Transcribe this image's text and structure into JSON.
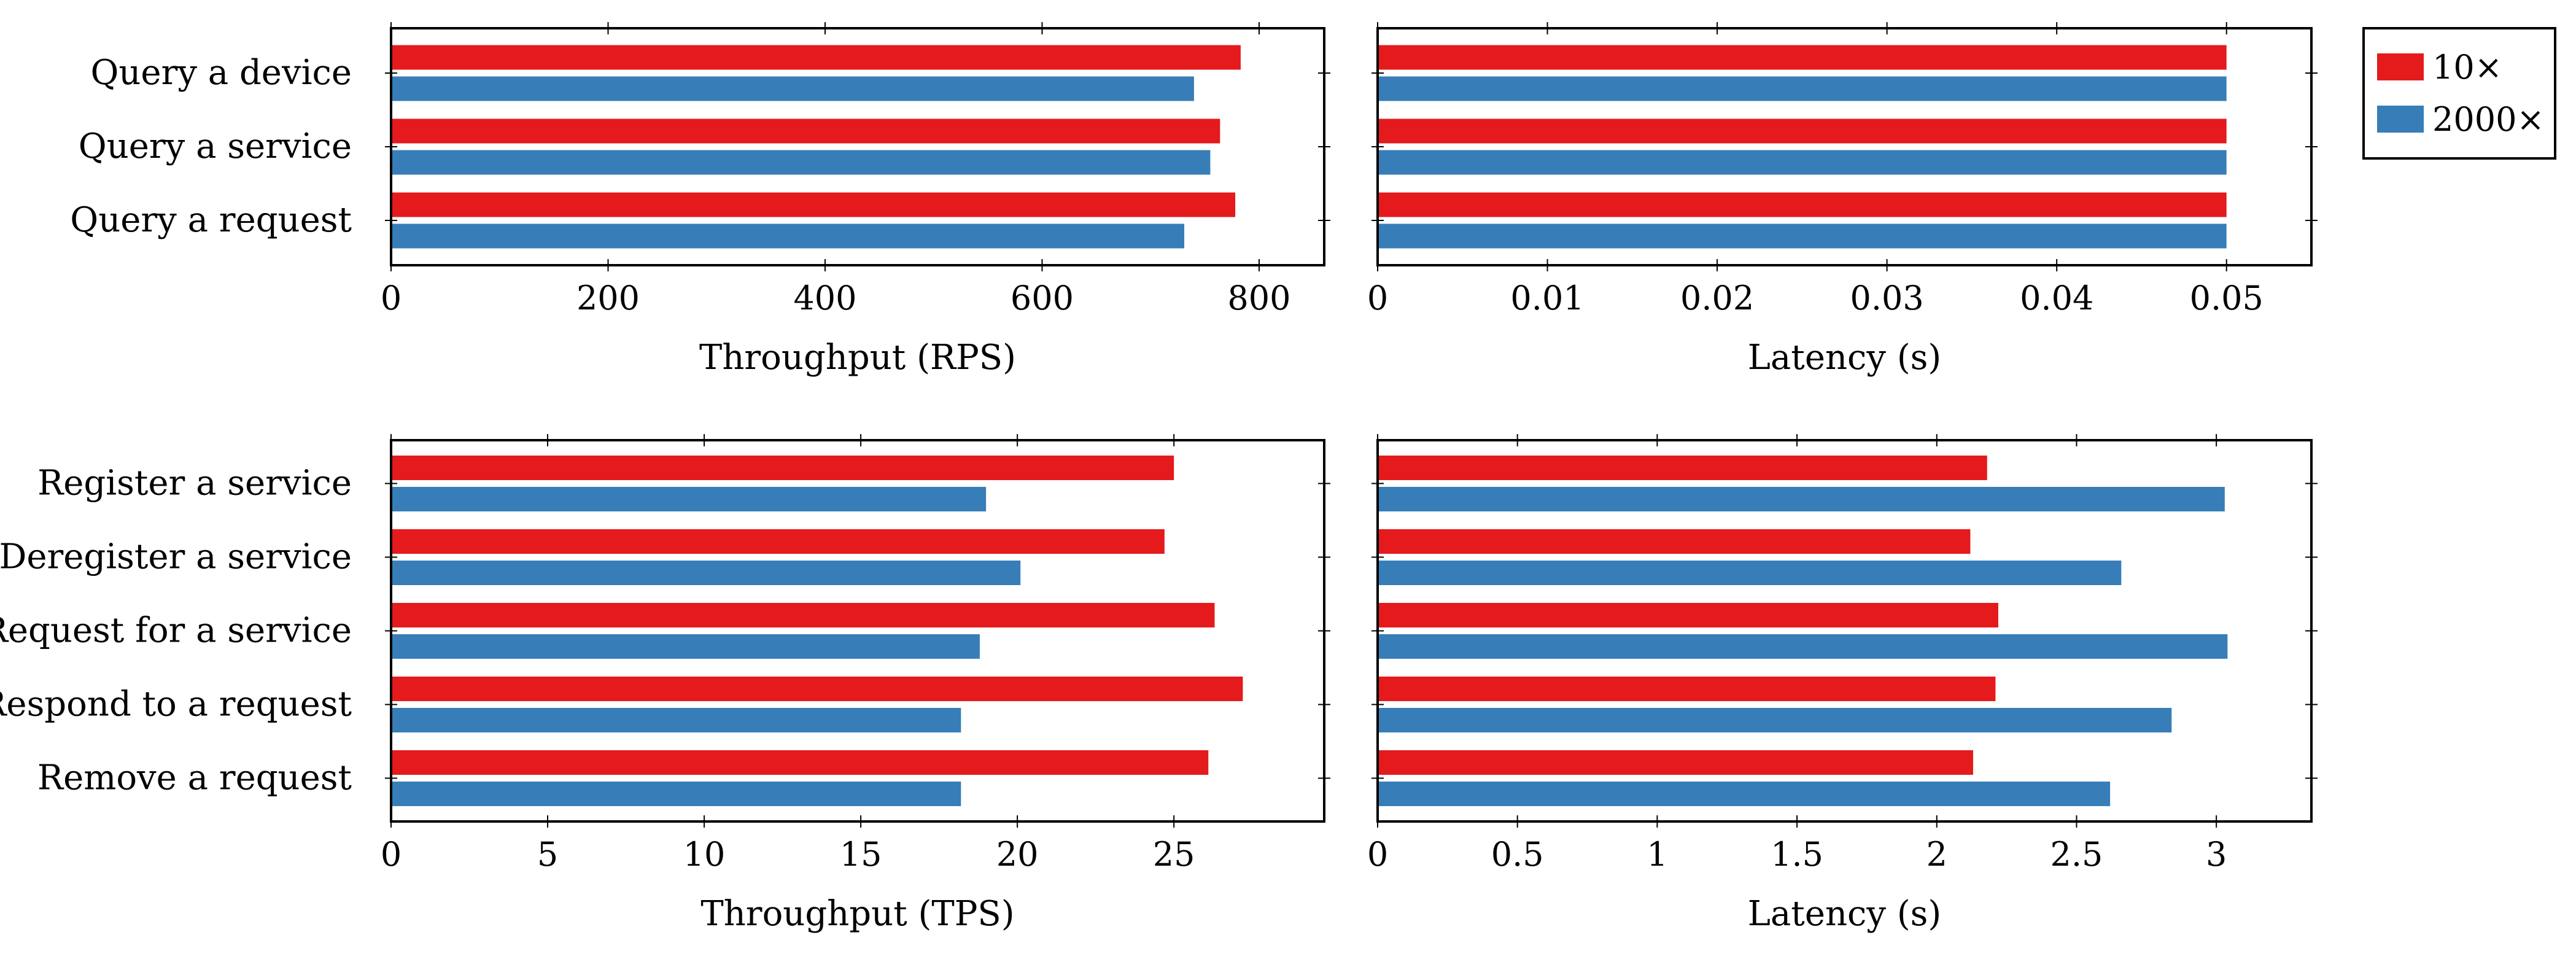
{
  "series_styles": [
    {
      "name": "10×",
      "color": "#e41a1c"
    },
    {
      "name": "2000×",
      "color": "#377eb8"
    }
  ],
  "chart_data": [
    {
      "type": "bar",
      "orientation": "horizontal",
      "categories": [
        "Query a device",
        "Query a service",
        "Query a request"
      ],
      "series": [
        {
          "name": "10×",
          "values": [
            783,
            764,
            778
          ]
        },
        {
          "name": "2000×",
          "values": [
            740,
            755,
            731
          ]
        }
      ],
      "xlabel": "Throughput (RPS)",
      "xlim": [
        0,
        860
      ],
      "xticks": [
        0,
        200,
        400,
        600,
        800
      ],
      "xtick_labels": [
        "0",
        "200",
        "400",
        "600",
        "800"
      ]
    },
    {
      "type": "bar",
      "orientation": "horizontal",
      "categories": [
        "Query a device",
        "Query a service",
        "Query a request"
      ],
      "series": [
        {
          "name": "10×",
          "values": [
            0.05,
            0.05,
            0.05
          ]
        },
        {
          "name": "2000×",
          "values": [
            0.05,
            0.05,
            0.05
          ]
        }
      ],
      "xlabel": "Latency (s)",
      "xlim": [
        0,
        0.055
      ],
      "xticks": [
        0,
        0.01,
        0.02,
        0.03,
        0.04,
        0.05
      ],
      "xtick_labels": [
        "0",
        "0.01",
        "0.02",
        "0.03",
        "0.04",
        "0.05"
      ]
    },
    {
      "type": "bar",
      "orientation": "horizontal",
      "categories": [
        "Register a service",
        "Deregister a service",
        "Request for a service",
        "Respond to a request",
        "Remove a request"
      ],
      "series": [
        {
          "name": "10×",
          "values": [
            25.0,
            24.7,
            26.3,
            27.2,
            26.1
          ]
        },
        {
          "name": "2000×",
          "values": [
            19.0,
            20.1,
            18.8,
            18.2,
            18.2
          ]
        }
      ],
      "xlabel": "Throughput (TPS)",
      "xlim": [
        0,
        29.8
      ],
      "xticks": [
        0,
        5,
        10,
        15,
        20,
        25
      ],
      "xtick_labels": [
        "0",
        "5",
        "10",
        "15",
        "20",
        "25"
      ]
    },
    {
      "type": "bar",
      "orientation": "horizontal",
      "categories": [
        "Register a service",
        "Deregister a service",
        "Request for a service",
        "Respond to a request",
        "Remove a request"
      ],
      "series": [
        {
          "name": "10×",
          "values": [
            2.18,
            2.12,
            2.22,
            2.21,
            2.13
          ]
        },
        {
          "name": "2000×",
          "values": [
            3.03,
            2.66,
            3.04,
            2.84,
            2.62
          ]
        }
      ],
      "xlabel": "Latency (s)",
      "xlim": [
        0,
        3.34
      ],
      "xticks": [
        0,
        0.5,
        1,
        1.5,
        2,
        2.5,
        3
      ],
      "xtick_labels": [
        "0",
        "0.5",
        "1",
        "1.5",
        "2",
        "2.5",
        "3"
      ]
    }
  ]
}
